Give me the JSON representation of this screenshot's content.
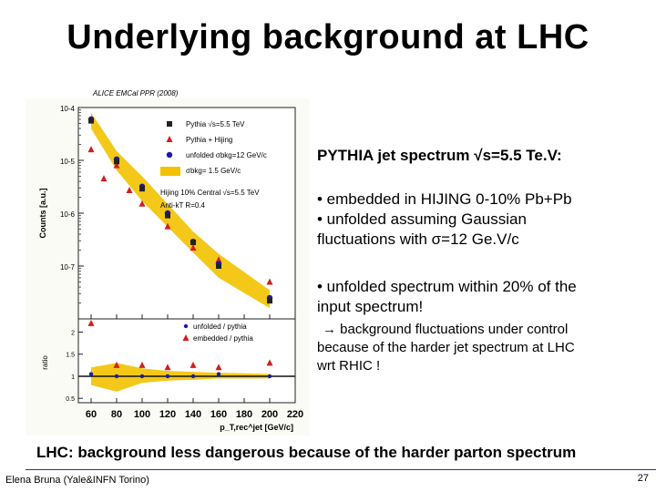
{
  "slide": {
    "title": "Underlying background at LHC",
    "citation": "ALICE EMCal PPR (2008)",
    "right_heading": "PYTHIA jet spectrum √s=5.5 Te.V:",
    "bullets_a": [
      "• embedded in HIJING 0-10% Pb+Pb",
      "• unfolded assuming Gaussian",
      "fluctuations with σ=12 Ge.V/c"
    ],
    "bullets_b": [
      "• unfolded spectrum within 20% of the",
      "input spectrum!"
    ],
    "arrow_text": [
      "→ background fluctuations under control",
      "because of the harder jet spectrum at LHC",
      "wrt RHIC  !"
    ],
    "conclusion": "LHC: background less dangerous because of the harder parton spectrum",
    "footer_author": "Elena Bruna (Yale&INFN Torino)",
    "page_number": "27"
  },
  "chart_data": [
    {
      "type": "scatter",
      "panel": "spectrum",
      "ylabel": "Counts [a.u.]",
      "yscale": "log",
      "xlim": [
        50,
        220
      ],
      "ylim_log10": [
        -8,
        -4
      ],
      "ytick_labels": [
        "10-4",
        "10-5",
        "10-6",
        "10-7"
      ],
      "ytick_exponents": [
        -4,
        -5,
        -6,
        -7
      ],
      "legend": [
        {
          "label": "Pythia √s=5.5 TeV",
          "marker": "square",
          "color": "#222222"
        },
        {
          "label": "Pythia + Hijing",
          "marker": "triangle",
          "color": "#d21e1e"
        },
        {
          "label": "unfolded σbkg=12 GeV/c",
          "marker": "circle",
          "color": "#1a1aa8"
        },
        {
          "label": "σbkg= 1.5 GeV/c",
          "marker": "band",
          "color": "#f2c200"
        }
      ],
      "annotations": [
        "Hijing 10% Central √s=5.5 TeV",
        "Anti-kT R=0.4"
      ],
      "series": [
        {
          "name": "Pythia + Hijing",
          "x": [
            60,
            70,
            80,
            90,
            100,
            120,
            140,
            160,
            200
          ],
          "y": [
            1.6e-05,
            4.5e-06,
            8e-06,
            2.7e-06,
            1.5e-06,
            5.6e-07,
            2.2e-07,
            1.3e-07,
            5e-08
          ]
        },
        {
          "name": "unfolded",
          "x": [
            60,
            80,
            100,
            120,
            140,
            160,
            200
          ],
          "y": [
            6e-05,
            1.05e-05,
            3.2e-06,
            1e-06,
            2.9e-07,
            1.1e-07,
            2.5e-08
          ]
        },
        {
          "name": "Pythia",
          "x": [
            60,
            80,
            100,
            120,
            140,
            160,
            200
          ],
          "y": [
            5.6e-05,
            9.5e-06,
            2.9e-06,
            9e-07,
            2.8e-07,
            1e-07,
            2.2e-08
          ]
        },
        {
          "name": "band",
          "x": [
            60,
            80,
            100,
            120,
            140,
            160,
            200
          ],
          "y_low": [
            4e-05,
            6.5e-06,
            1.7e-06,
            5.5e-07,
            1.8e-07,
            6e-08,
            1.6e-08
          ],
          "y_high": [
            8e-05,
            1.5e-05,
            5e-06,
            1.5e-06,
            4.5e-07,
            1.7e-07,
            3.5e-08
          ]
        }
      ]
    },
    {
      "type": "scatter",
      "panel": "ratio",
      "ylabel": "ratio",
      "ylim": [
        0.4,
        2.3
      ],
      "ytick_labels": [
        "0.5",
        "1",
        "1.5",
        "2"
      ],
      "ytick_values": [
        0.5,
        1,
        1.5,
        2
      ],
      "xlabel": "p_T,rec^jet [GeV/c]",
      "xlim": [
        50,
        220
      ],
      "xtick_labels": [
        "60",
        "80",
        "100",
        "120",
        "140",
        "160",
        "180",
        "200",
        "220"
      ],
      "xtick_values": [
        60,
        80,
        100,
        120,
        140,
        160,
        180,
        200,
        220
      ],
      "legend": [
        {
          "label": "unfolded / pythia",
          "marker": "circle",
          "color": "#1a1aa8"
        },
        {
          "label": "embedded / pythia",
          "marker": "triangle",
          "color": "#d21e1e"
        }
      ],
      "series": [
        {
          "name": "unfolded / pythia",
          "x": [
            60,
            80,
            100,
            120,
            140,
            160,
            200
          ],
          "y": [
            1.05,
            1.0,
            1.0,
            1.0,
            1.0,
            1.05,
            1.0
          ]
        },
        {
          "name": "embedded / pythia",
          "x": [
            60,
            80,
            100,
            120,
            140,
            160,
            200
          ],
          "y": [
            2.2,
            1.25,
            1.25,
            1.2,
            1.25,
            1.2,
            1.3
          ]
        },
        {
          "name": "band",
          "x": [
            60,
            80,
            100,
            120,
            140,
            160,
            200
          ],
          "y_low": [
            0.8,
            0.65,
            0.85,
            0.9,
            0.92,
            0.95,
            0.95
          ],
          "y_high": [
            1.2,
            1.3,
            1.18,
            1.12,
            1.1,
            1.08,
            1.05
          ]
        }
      ]
    }
  ]
}
